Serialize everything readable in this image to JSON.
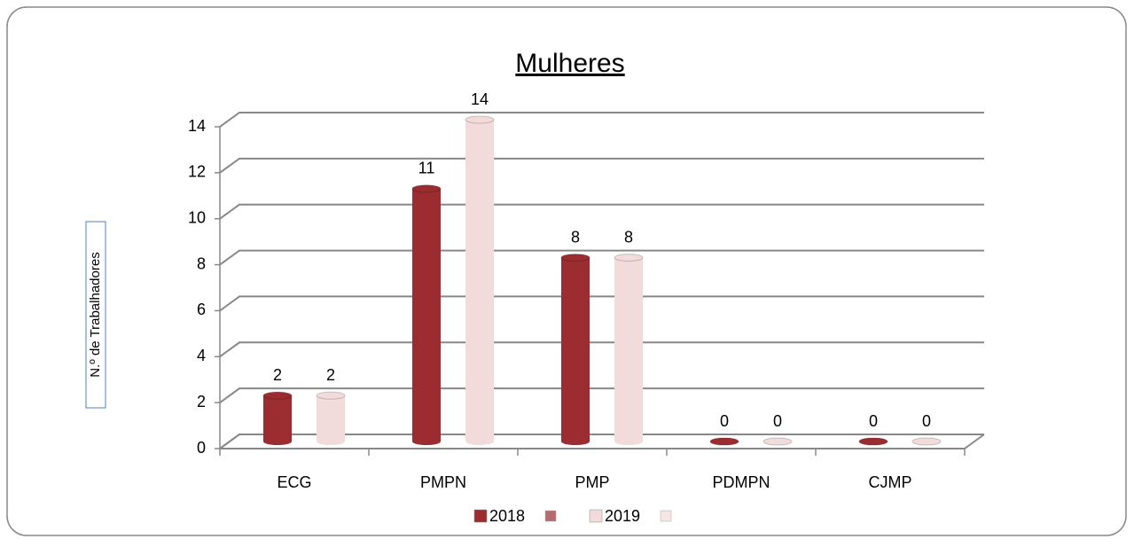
{
  "chart_data": {
    "type": "bar3d",
    "title": "Mulheres",
    "ylabel": "N.º de Trabalhadores",
    "categories": [
      "ECG",
      "PMPN",
      "PMP",
      "PDMPN",
      "CJMP"
    ],
    "series": [
      {
        "name": "2018",
        "color": "#9b2d30",
        "values": [
          2,
          11,
          8,
          0,
          0
        ]
      },
      {
        "name": "2019",
        "color": "#f2dcdb",
        "values": [
          2,
          14,
          8,
          0,
          0
        ]
      }
    ],
    "ylim": [
      0,
      14
    ],
    "yticks": [
      0,
      2,
      4,
      6,
      8,
      10,
      12,
      14
    ],
    "grid": true,
    "legend": "bottom"
  }
}
